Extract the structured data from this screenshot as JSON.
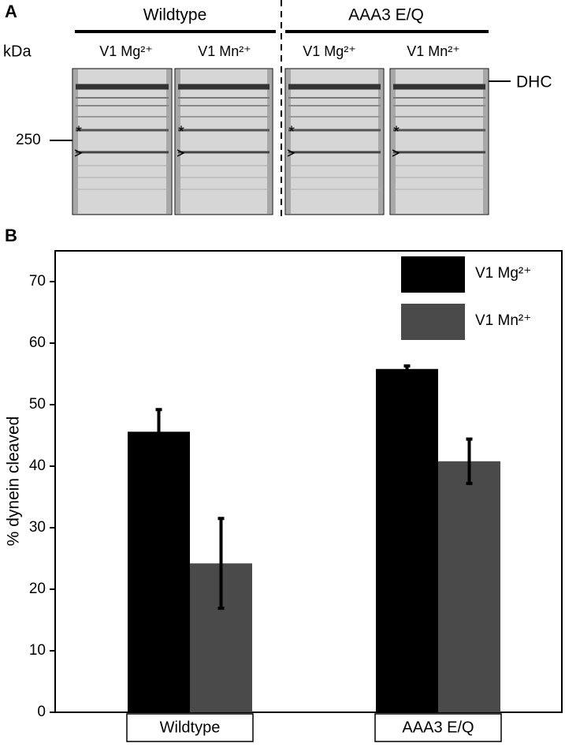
{
  "panel_a": {
    "label": "A",
    "groups": [
      "Wildtype",
      "AAA3 E/Q"
    ],
    "unit": "kDa",
    "lanes": [
      "V1 Mg²⁺",
      "V1 Mn²⁺",
      "V1 Mg²⁺",
      "V1 Mn²⁺"
    ],
    "marker": "250",
    "band": "DHC",
    "star": "*"
  },
  "chart_data": {
    "type": "bar",
    "panel_label": "B",
    "ylabel": "% dynein cleaved",
    "categories": [
      "Wildtype",
      "AAA3 E/Q"
    ],
    "series": [
      {
        "name": "V1 Mg²⁺",
        "color": "#000000",
        "values": [
          45.6,
          55.8
        ],
        "errors": [
          3.6,
          0.5
        ]
      },
      {
        "name": "V1 Mn²⁺",
        "color": "#4a4a4a",
        "values": [
          24.2,
          40.8
        ],
        "errors": [
          7.3,
          3.6
        ]
      }
    ],
    "ylim": [
      0,
      75
    ],
    "yticks": [
      0,
      10,
      20,
      30,
      40,
      50,
      60,
      70
    ],
    "legend": "upper-right"
  }
}
